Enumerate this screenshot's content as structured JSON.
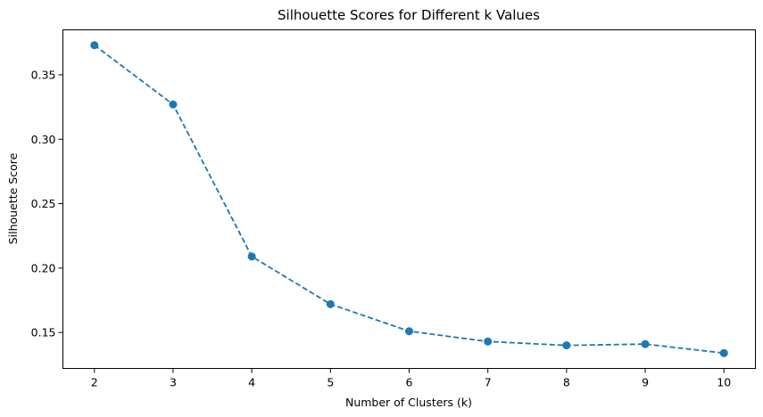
{
  "chart_data": {
    "type": "line",
    "title": "Silhouette Scores for Different k Values",
    "xlabel": "Number of Clusters (k)",
    "ylabel": "Silhouette Score",
    "x": [
      2,
      3,
      4,
      5,
      6,
      7,
      8,
      9,
      10
    ],
    "series": [
      {
        "values": [
          0.373,
          0.327,
          0.209,
          0.172,
          0.151,
          0.143,
          0.14,
          0.141,
          0.134
        ],
        "color": "#1f77b4",
        "line_style": "dashed",
        "marker": "circle"
      }
    ],
    "xticks": [
      2,
      3,
      4,
      5,
      6,
      7,
      8,
      9,
      10
    ],
    "yticks": [
      0.15,
      0.2,
      0.25,
      0.3,
      0.35
    ],
    "ytick_labels": [
      "0.15",
      "0.20",
      "0.25",
      "0.30",
      "0.35"
    ],
    "xlim": [
      1.6,
      10.4
    ],
    "ylim": [
      0.1221,
      0.3849
    ],
    "grid": false,
    "legend": false
  }
}
